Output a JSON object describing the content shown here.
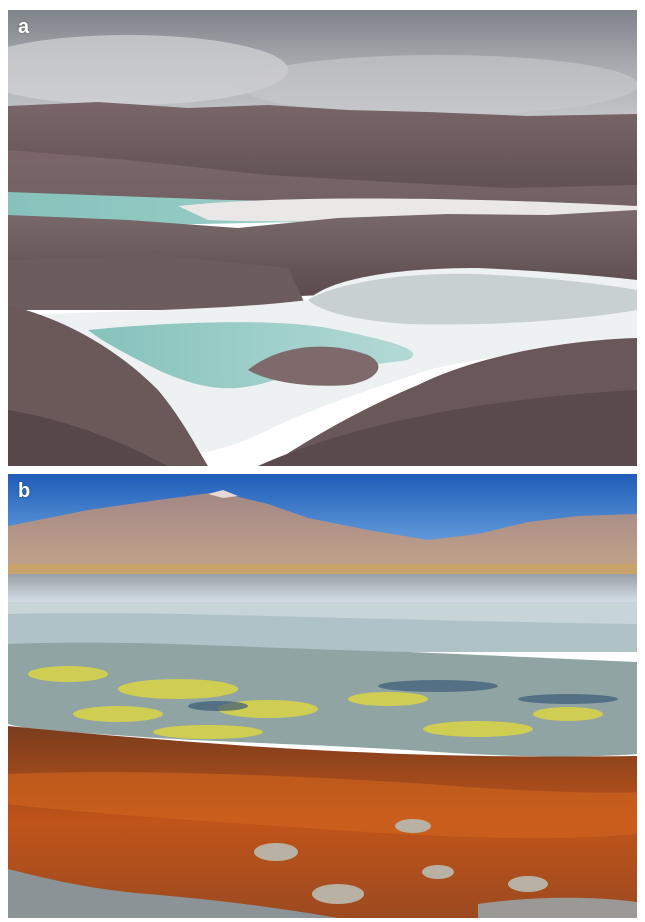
{
  "panels": [
    {
      "label": "a"
    },
    {
      "label": "b"
    }
  ],
  "colors": {
    "sky_a": "#8a8d93",
    "lake_turquoise": "#8fc7c2",
    "salt_white": "#e8ecec",
    "mountains_a": "#6f5e60",
    "sky_b": "#2f6fc8",
    "algae_yellow": "#d9d64a",
    "mineral_orange": "#b8501a"
  }
}
